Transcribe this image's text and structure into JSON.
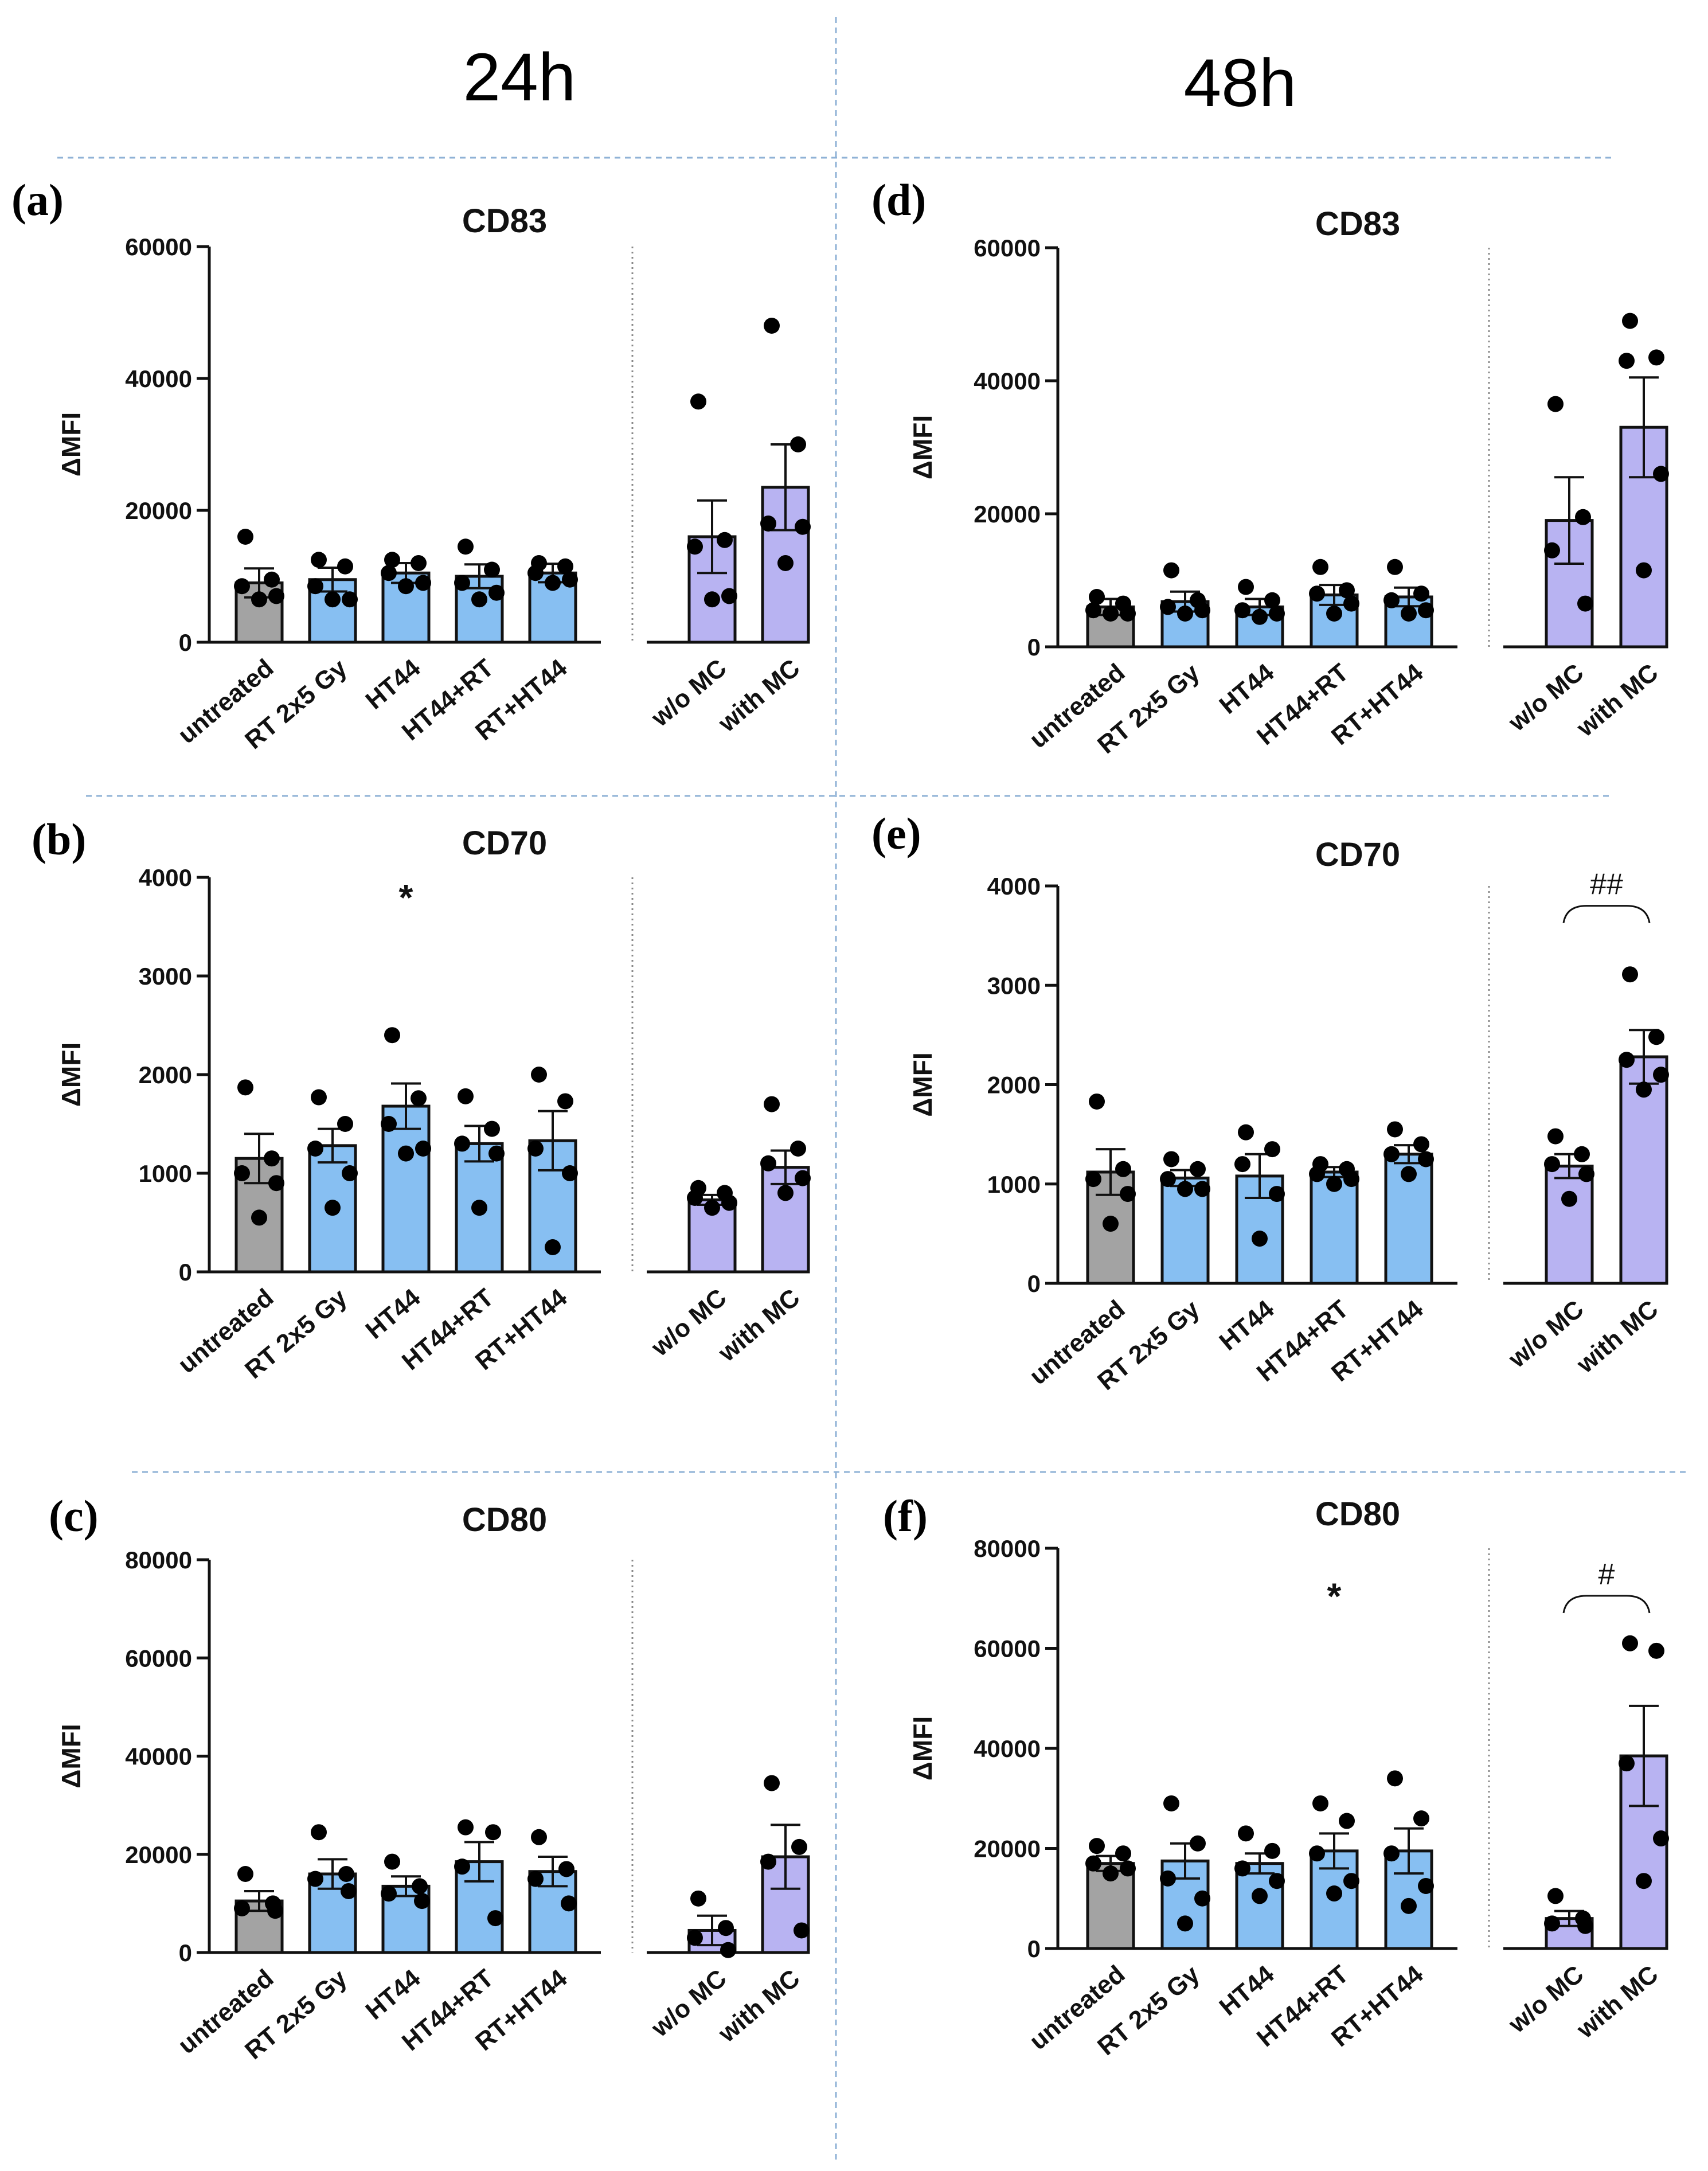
{
  "figure": {
    "column_titles": [
      "24h",
      "48h"
    ]
  },
  "colors": {
    "untreated": "#a3a3a3",
    "treatment": "#87bff2",
    "control": "#b8b3f2",
    "separator": "#8fb2d6"
  },
  "chart_data": [
    {
      "panel": "(a)",
      "type": "bar",
      "title": "CD83",
      "ylabel": "ΔMFI",
      "ylim": [
        0,
        60000
      ],
      "yticks": [
        0,
        20000,
        40000,
        60000
      ],
      "yticklabels": [
        "0",
        "20000",
        "40000",
        "60000"
      ],
      "categories": [
        "untreated",
        "RT 2x5 Gy",
        "HT44",
        "HT44+RT",
        "RT+HT44",
        "w/o MC",
        "with MC"
      ],
      "values": [
        9000,
        9500,
        10500,
        10000,
        10500,
        16000,
        23500
      ],
      "errors": [
        2200,
        1800,
        1500,
        1800,
        1400,
        5500,
        6500
      ],
      "points": [
        [
          16000,
          9500,
          8500,
          7000,
          6500
        ],
        [
          12500,
          11500,
          8500,
          6500,
          6500
        ],
        [
          12500,
          12000,
          10500,
          9000,
          8500
        ],
        [
          14500,
          11000,
          9000,
          7500,
          6500
        ],
        [
          12000,
          11500,
          10500,
          9500,
          9000
        ],
        [
          36500,
          15500,
          14500,
          7000,
          6500
        ],
        [
          48000,
          30000,
          18000,
          17500,
          12000
        ]
      ],
      "annotations": [],
      "hash_bracket": null
    },
    {
      "panel": "(b)",
      "type": "bar",
      "title": "CD70",
      "ylabel": "ΔMFI",
      "ylim": [
        0,
        4000
      ],
      "yticks": [
        0,
        1000,
        2000,
        3000,
        4000
      ],
      "yticklabels": [
        "0",
        "1000",
        "2000",
        "3000",
        "4000"
      ],
      "categories": [
        "untreated",
        "RT 2x5 Gy",
        "HT44",
        "HT44+RT",
        "RT+HT44",
        "w/o MC",
        "with MC"
      ],
      "values": [
        1150,
        1280,
        1680,
        1300,
        1330,
        730,
        1060
      ],
      "errors": [
        250,
        170,
        230,
        180,
        300,
        50,
        170
      ],
      "points": [
        [
          1870,
          1150,
          1000,
          900,
          550
        ],
        [
          1770,
          1500,
          1250,
          1000,
          650
        ],
        [
          2400,
          1760,
          1500,
          1250,
          1200
        ],
        [
          1780,
          1450,
          1300,
          1200,
          650
        ],
        [
          2000,
          1730,
          1250,
          1000,
          250
        ],
        [
          850,
          800,
          750,
          700,
          650
        ],
        [
          1700,
          1250,
          1100,
          950,
          800
        ]
      ],
      "annotations": [
        {
          "text": "*",
          "category": "HT44",
          "value": 3900
        }
      ],
      "hash_bracket": null
    },
    {
      "panel": "(c)",
      "type": "bar",
      "title": "CD80",
      "ylabel": "ΔMFI",
      "ylim": [
        0,
        80000
      ],
      "yticks": [
        0,
        20000,
        40000,
        60000,
        80000
      ],
      "yticklabels": [
        "0",
        "20000",
        "40000",
        "60000",
        "80000"
      ],
      "categories": [
        "untreated",
        "RT 2x5 Gy",
        "HT44",
        "HT44+RT",
        "RT+HT44",
        "w/o MC",
        "with MC"
      ],
      "values": [
        10500,
        16000,
        13500,
        18500,
        16500,
        4500,
        19500
      ],
      "errors": [
        2000,
        3000,
        2000,
        4000,
        3000,
        3000,
        6500
      ],
      "points": [
        [
          16000,
          10000,
          9000,
          8500
        ],
        [
          24500,
          16000,
          15000,
          12500
        ],
        [
          18500,
          13500,
          12000,
          10500
        ],
        [
          25500,
          24500,
          17500,
          7000
        ],
        [
          23500,
          17000,
          15000,
          10000
        ],
        [
          11000,
          5000,
          3000,
          500
        ],
        [
          34500,
          21500,
          18500,
          4500
        ]
      ],
      "annotations": [],
      "hash_bracket": null
    },
    {
      "panel": "(d)",
      "type": "bar",
      "title": "CD83",
      "ylabel": "ΔMFI",
      "ylim": [
        0,
        60000
      ],
      "yticks": [
        0,
        20000,
        40000,
        60000
      ],
      "yticklabels": [
        "0",
        "20000",
        "40000",
        "60000"
      ],
      "categories": [
        "untreated",
        "RT 2x5 Gy",
        "HT44",
        "HT44+RT",
        "RT+HT44",
        "w/o MC",
        "with MC"
      ],
      "values": [
        6000,
        6800,
        6000,
        7800,
        7500,
        19000,
        33000
      ],
      "errors": [
        1200,
        1500,
        1200,
        1500,
        1400,
        6500,
        7500
      ],
      "points": [
        [
          7500,
          6500,
          5500,
          5000,
          5000
        ],
        [
          11500,
          7000,
          6000,
          5500,
          5000
        ],
        [
          9000,
          7000,
          5500,
          5000,
          4500
        ],
        [
          12000,
          8500,
          8000,
          6500,
          5000
        ],
        [
          12000,
          8000,
          7000,
          5500,
          5000
        ],
        [
          36500,
          19500,
          14500,
          6500
        ],
        [
          49000,
          43500,
          43000,
          26000,
          11500
        ]
      ],
      "annotations": [],
      "hash_bracket": null
    },
    {
      "panel": "(e)",
      "type": "bar",
      "title": "CD70",
      "ylabel": "ΔMFI",
      "ylim": [
        0,
        4000
      ],
      "yticks": [
        0,
        1000,
        2000,
        3000,
        4000
      ],
      "yticklabels": [
        "0",
        "1000",
        "2000",
        "3000",
        "4000"
      ],
      "categories": [
        "untreated",
        "RT 2x5 Gy",
        "HT44",
        "HT44+RT",
        "RT+HT44",
        "w/o MC",
        "with MC"
      ],
      "values": [
        1120,
        1060,
        1080,
        1120,
        1300,
        1180,
        2280
      ],
      "errors": [
        230,
        80,
        220,
        50,
        90,
        120,
        270
      ],
      "points": [
        [
          1830,
          1150,
          1050,
          900,
          600
        ],
        [
          1250,
          1150,
          1050,
          950,
          950
        ],
        [
          1520,
          1350,
          1200,
          900,
          450
        ],
        [
          1200,
          1150,
          1100,
          1050,
          1000
        ],
        [
          1550,
          1400,
          1300,
          1250,
          1100
        ],
        [
          1480,
          1300,
          1200,
          1100,
          850
        ],
        [
          3110,
          2480,
          2250,
          2100,
          1950
        ]
      ],
      "annotations": [],
      "hash_bracket": {
        "text": "##",
        "from": "w/o MC",
        "to": "with MC",
        "value": 3800
      }
    },
    {
      "panel": "(f)",
      "type": "bar",
      "title": "CD80",
      "ylabel": "ΔMFI",
      "ylim": [
        0,
        80000
      ],
      "yticks": [
        0,
        20000,
        40000,
        60000,
        80000
      ],
      "yticklabels": [
        "0",
        "20000",
        "40000",
        "60000",
        "80000"
      ],
      "categories": [
        "untreated",
        "RT 2x5 Gy",
        "HT44",
        "HT44+RT",
        "RT+HT44",
        "w/o MC",
        "with MC"
      ],
      "values": [
        17000,
        17500,
        17000,
        19500,
        19500,
        6000,
        38500
      ],
      "errors": [
        1500,
        3500,
        2000,
        3500,
        4500,
        1500,
        10000
      ],
      "points": [
        [
          20500,
          19000,
          17000,
          16000,
          15000
        ],
        [
          29000,
          21000,
          14000,
          10000,
          5000
        ],
        [
          23000,
          19500,
          16000,
          13500,
          10500
        ],
        [
          29000,
          25500,
          19000,
          13500,
          11000
        ],
        [
          34000,
          26000,
          19000,
          12500,
          8500
        ],
        [
          10500,
          6000,
          5000,
          4500
        ],
        [
          61000,
          59500,
          37000,
          22000,
          13500
        ]
      ],
      "annotations": [
        {
          "text": "*",
          "category": "HT44+RT",
          "value": 72500
        }
      ],
      "hash_bracket": {
        "text": "#",
        "from": "w/o MC",
        "to": "with MC",
        "value": 70500
      }
    }
  ]
}
